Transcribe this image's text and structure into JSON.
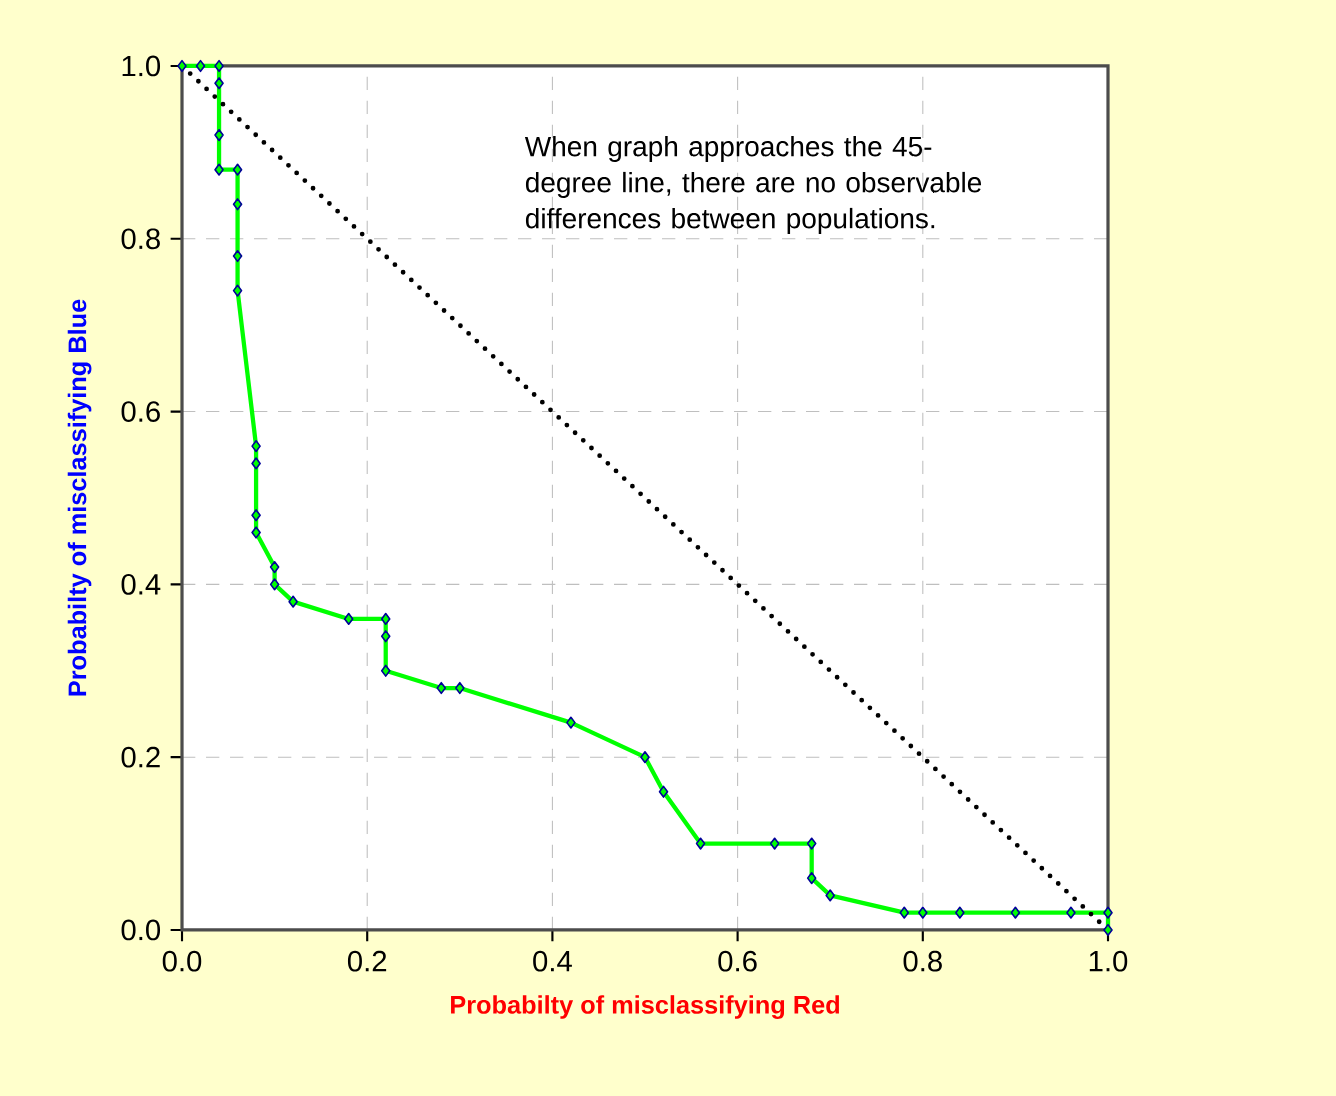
{
  "chart_data": {
    "type": "line",
    "xlabel": "Probabilty of misclassifying Red",
    "ylabel": "Probabilty of misclassifying Blue",
    "annotations": [
      "When graph approaches the 45-degree line, there are no observable differences between populations."
    ],
    "series": [
      {
        "color": "#00ff00",
        "marker": "diamond",
        "line_style": "solid",
        "x": [
          0,
          0.02,
          0.04,
          0.04,
          0.04,
          0.04,
          0.06,
          0.06,
          0.06,
          0.06,
          0.08,
          0.08,
          0.08,
          0.08,
          0.1,
          0.1,
          0.12,
          0.18,
          0.22,
          0.22,
          0.22,
          0.28,
          0.3,
          0.42,
          0.5,
          0.52,
          0.56,
          0.64,
          0.68,
          0.68,
          0.7,
          0.78,
          0.8,
          0.84,
          0.9,
          0.96,
          1.0,
          1.0
        ],
        "values": [
          1,
          1,
          1,
          0.98,
          0.92,
          0.88,
          0.88,
          0.84,
          0.78,
          0.74,
          0.56,
          0.54,
          0.48,
          0.46,
          0.42,
          0.4,
          0.38,
          0.36,
          0.36,
          0.34,
          0.3,
          0.28,
          0.28,
          0.24,
          0.2,
          0.16,
          0.1,
          0.1,
          0.1,
          0.06,
          0.04,
          0.02,
          0.02,
          0.02,
          0.02,
          0.02,
          0.02,
          0
        ]
      },
      {
        "color": "#000000",
        "marker": "none",
        "line_style": "dotted",
        "x": [
          0,
          1
        ],
        "values": [
          1,
          0
        ]
      }
    ],
    "xlim": [
      0,
      1
    ],
    "ylim": [
      0,
      1
    ],
    "xticks": [
      {
        "value": 0,
        "label": "0.0"
      },
      {
        "value": 0.2,
        "label": "0.2"
      },
      {
        "value": 0.4,
        "label": "0.4"
      },
      {
        "value": 0.6,
        "label": "0.6"
      },
      {
        "value": 0.8,
        "label": "0.8"
      },
      {
        "value": 1,
        "label": "1.0"
      }
    ],
    "yticks": [
      {
        "value": 0,
        "label": "0.0"
      },
      {
        "value": 0.2,
        "label": "0.2"
      },
      {
        "value": 0.4,
        "label": "0.4"
      },
      {
        "value": 0.6,
        "label": "0.6"
      },
      {
        "value": 0.8,
        "label": "0.8"
      },
      {
        "value": 1,
        "label": "1.0"
      }
    ],
    "grid": true
  }
}
